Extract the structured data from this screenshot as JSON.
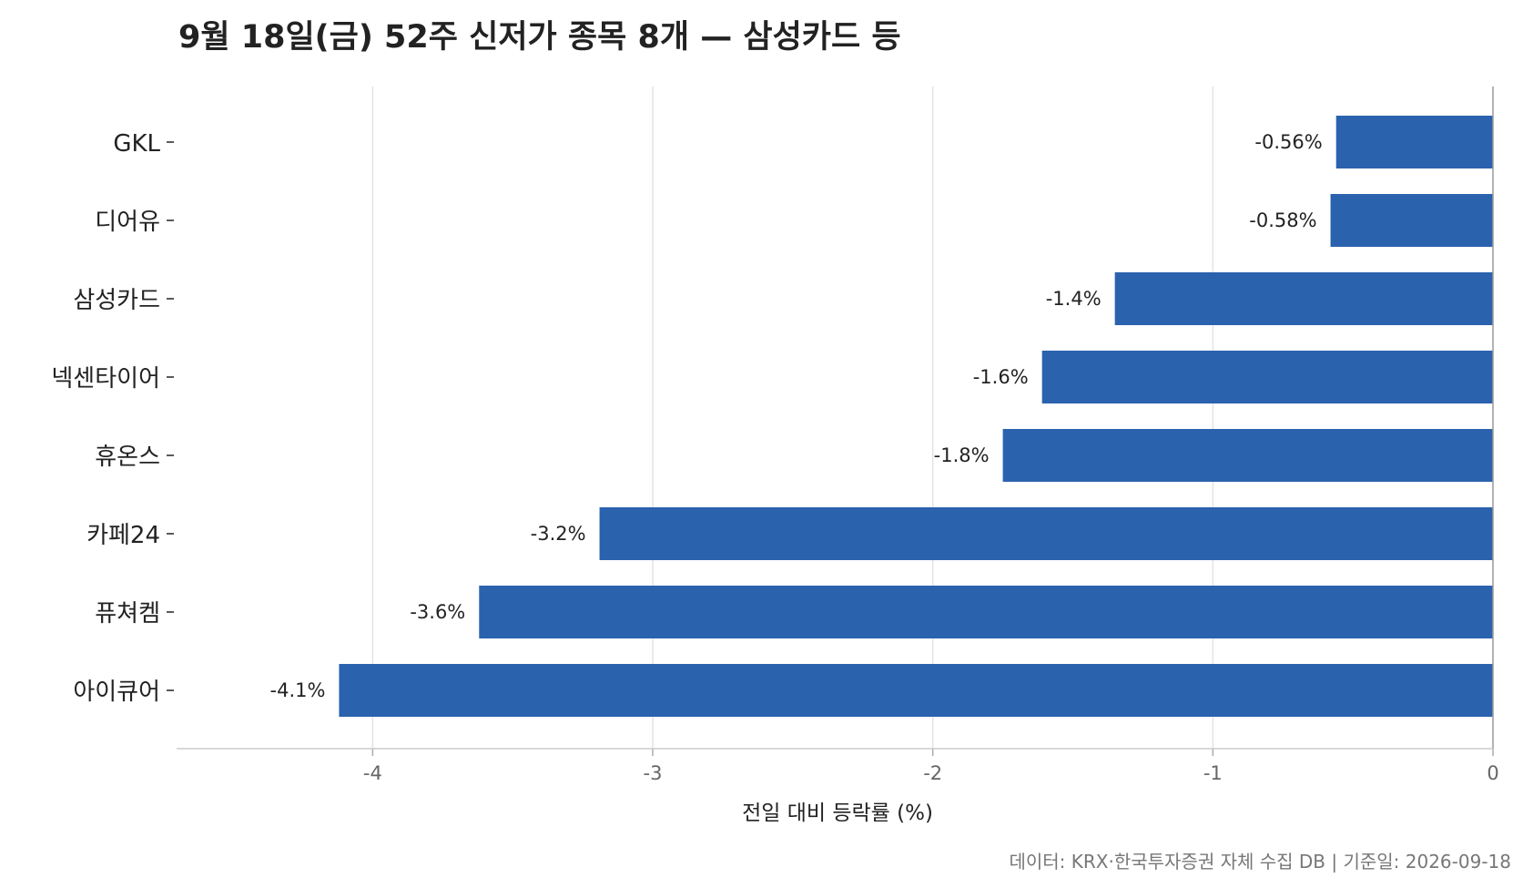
{
  "chart_data": {
    "type": "bar",
    "orientation": "horizontal",
    "title": "9월 18일(금) 52주 신저가 종목 8개 — 삼성카드 등",
    "xlabel": "전일 대비 등락률 (%)",
    "ylabel": "",
    "categories": [
      "GKL",
      "디어유",
      "삼성카드",
      "넥센타이어",
      "휴온스",
      "카페24",
      "퓨쳐켐",
      "아이큐어"
    ],
    "values": [
      -0.56,
      -0.58,
      -1.35,
      -1.61,
      -1.75,
      -3.19,
      -3.62,
      -4.12
    ],
    "data_labels": [
      "-0.56%",
      "-0.58%",
      "-1.4%",
      "-1.6%",
      "-1.8%",
      "-3.2%",
      "-3.6%",
      "-4.1%"
    ],
    "xlim": [
      -4.7,
      0
    ],
    "xticks": [
      -4,
      -3,
      -2,
      -1,
      0
    ],
    "xtick_labels": [
      "-4",
      "-3",
      "-2",
      "-1",
      "0"
    ],
    "grid": "vertical",
    "bar_color": "#2a62ae",
    "source_note": "데이터: KRX·한국투자증권 자체 수집 DB  |  기준일: 2026-09-18"
  }
}
